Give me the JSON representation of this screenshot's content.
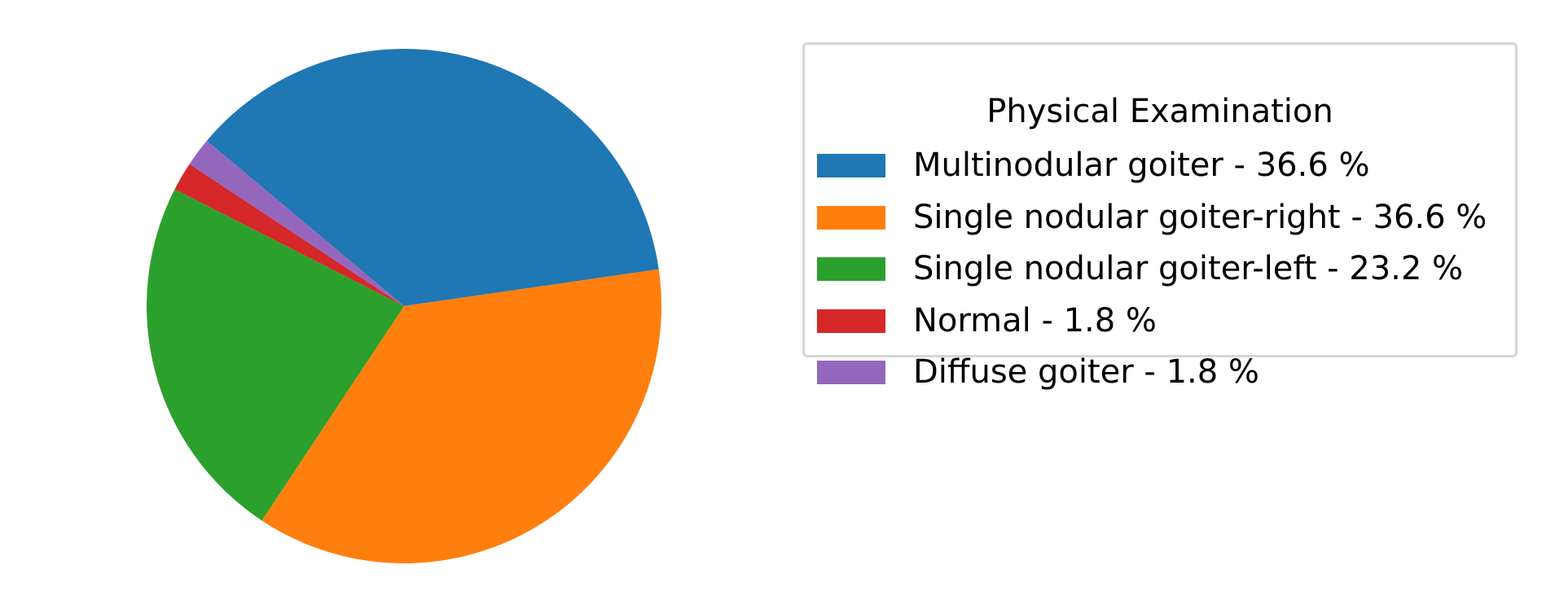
{
  "chart_data": {
    "type": "pie",
    "start_angle_deg": 140,
    "direction": "clockwise",
    "slices": [
      {
        "label": "Multinodular goiter - 36.6 %",
        "value": 36.6,
        "color": "#1f77b4"
      },
      {
        "label": "Single nodular goiter-right - 36.6 %",
        "value": 36.6,
        "color": "#ff7f0e"
      },
      {
        "label": "Single nodular goiter-left - 23.2 %",
        "value": 23.2,
        "color": "#2ca02c"
      },
      {
        "label": "Normal - 1.8 %",
        "value": 1.8,
        "color": "#d62728"
      },
      {
        "label": "Diffuse goiter - 1.8 %",
        "value": 1.8,
        "color": "#9467bd"
      }
    ],
    "legend": {
      "title": "Physical Examination",
      "placement": "right"
    }
  }
}
